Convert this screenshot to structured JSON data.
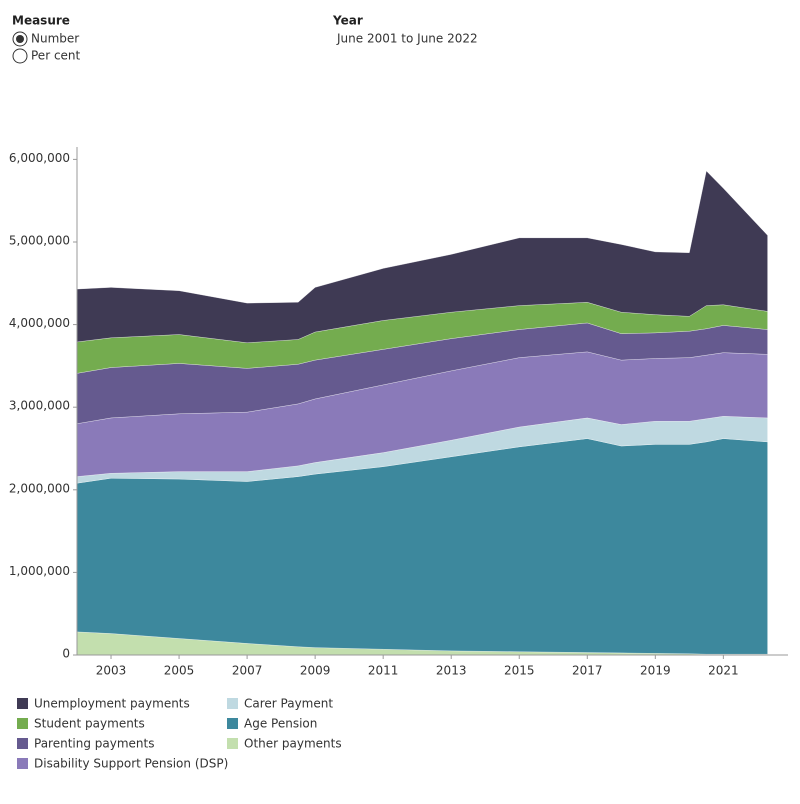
{
  "filters": {
    "measure": {
      "label": "Measure",
      "options": [
        "Number",
        "Per cent"
      ],
      "selected": 0
    },
    "year": {
      "label": "Year",
      "value": "June 2001 to June 2022"
    }
  },
  "chart_data": {
    "type": "stacked-area",
    "x": [
      2002,
      2003,
      2005,
      2007,
      2008.5,
      2009,
      2011,
      2013,
      2015,
      2017,
      2018,
      2019,
      2020,
      2020.5,
      2021,
      2022.3
    ],
    "xlim": [
      2002,
      2022.9
    ],
    "xticks": [
      2003,
      2005,
      2007,
      2009,
      2011,
      2013,
      2015,
      2017,
      2019,
      2021
    ],
    "ylim": [
      0,
      6150000
    ],
    "yticks": [
      0,
      {
        "value": 1000000,
        "label": "1,000,000"
      },
      {
        "value": 2000000,
        "label": "2,000,000"
      },
      {
        "value": 3000000,
        "label": "3,000,000"
      },
      {
        "value": 4000000,
        "label": "4,000,000"
      },
      {
        "value": 5000000,
        "label": "5,000,000"
      },
      {
        "value": 6000000,
        "label": "6,000,000"
      }
    ],
    "series": [
      {
        "name": "Unemployment payments",
        "color": "#3f3a54",
        "values": [
          640000,
          610000,
          530000,
          480000,
          450000,
          540000,
          630000,
          700000,
          820000,
          780000,
          820000,
          760000,
          770000,
          1630000,
          1410000,
          920000
        ]
      },
      {
        "name": "Student payments",
        "color": "#74ac4f",
        "values": [
          380000,
          360000,
          350000,
          310000,
          300000,
          340000,
          350000,
          320000,
          290000,
          250000,
          260000,
          220000,
          180000,
          280000,
          250000,
          220000
        ]
      },
      {
        "name": "Parenting payments",
        "color": "#655a8f",
        "values": [
          610000,
          610000,
          610000,
          530000,
          480000,
          470000,
          430000,
          390000,
          340000,
          350000,
          320000,
          310000,
          320000,
          320000,
          330000,
          300000
        ]
      },
      {
        "name": "Disability Support Pension (DSP)",
        "color": "#8a7ab9",
        "values": [
          640000,
          670000,
          700000,
          720000,
          750000,
          770000,
          820000,
          840000,
          840000,
          800000,
          780000,
          760000,
          770000,
          770000,
          770000,
          770000
        ]
      },
      {
        "name": "Carer Payment",
        "color": "#bfd9e1",
        "values": [
          80000,
          60000,
          90000,
          120000,
          130000,
          140000,
          170000,
          200000,
          240000,
          250000,
          260000,
          280000,
          280000,
          280000,
          270000,
          290000
        ]
      },
      {
        "name": "Age Pension",
        "color": "#3d889d",
        "values": [
          1800000,
          1880000,
          1930000,
          1960000,
          2060000,
          2100000,
          2210000,
          2350000,
          2480000,
          2590000,
          2505000,
          2530000,
          2535000,
          2570000,
          2610000,
          2570000
        ]
      },
      {
        "name": "Other payments",
        "color": "#c3dfae",
        "values": [
          280000,
          260000,
          200000,
          140000,
          100000,
          90000,
          70000,
          50000,
          40000,
          30000,
          25000,
          20000,
          15000,
          10000,
          10000,
          10000
        ]
      }
    ]
  }
}
